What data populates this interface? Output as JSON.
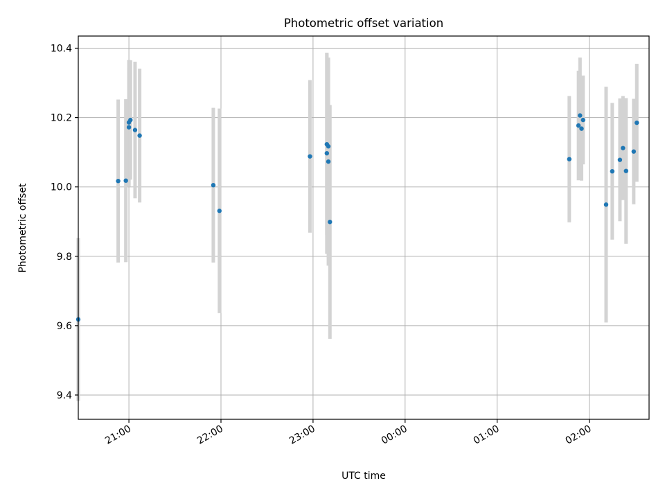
{
  "chart_data": {
    "type": "scatter",
    "title": "Photometric offset variation",
    "xlabel": "UTC time",
    "ylabel": "Photometric offset",
    "x_unit": "UTC time (HH:MM), spanning midnight",
    "xlim": [
      "20:27",
      "02:39"
    ],
    "ylim": [
      9.33,
      10.435
    ],
    "xticks": [
      "21:00",
      "22:00",
      "23:00",
      "00:00",
      "01:00",
      "02:00"
    ],
    "yticks": [
      "9.4",
      "9.6",
      "9.8",
      "10.0",
      "10.2",
      "10.4"
    ],
    "grid": true,
    "x_tick_rotation_deg": 30,
    "colors": {
      "point": "#1f77b4",
      "errorbar": "#d3d3d3",
      "grid": "#b0b0b0",
      "axes": "#000000"
    },
    "series": [
      {
        "points": [
          {
            "t": "20:27",
            "y": 9.618,
            "err": 0.235
          },
          {
            "t": "20:53",
            "y": 10.017,
            "err": 0.235
          },
          {
            "t": "20:58",
            "y": 10.018,
            "err": 0.235
          },
          {
            "t": "21:00",
            "y": 10.186,
            "err": 0.18
          },
          {
            "t": "21:00",
            "y": 10.172,
            "err": 0.172
          },
          {
            "t": "21:01",
            "y": 10.193,
            "err": 0.172
          },
          {
            "t": "21:04",
            "y": 10.164,
            "err": 0.197
          },
          {
            "t": "21:07",
            "y": 10.148,
            "err": 0.193
          },
          {
            "t": "21:55",
            "y": 10.005,
            "err": 0.223
          },
          {
            "t": "21:59",
            "y": 9.931,
            "err": 0.295
          },
          {
            "t": "22:58",
            "y": 10.088,
            "err": 0.22
          },
          {
            "t": "23:09",
            "y": 10.123,
            "err": 0.262
          },
          {
            "t": "23:09",
            "y": 10.097,
            "err": 0.29
          },
          {
            "t": "23:10",
            "y": 10.073,
            "err": 0.3
          },
          {
            "t": "23:10",
            "y": 10.117,
            "err": 0.255
          },
          {
            "t": "23:11",
            "y": 9.899,
            "err": 0.337
          },
          {
            "t": "01:47",
            "y": 10.08,
            "err": 0.182
          },
          {
            "t": "01:53",
            "y": 10.177,
            "err": 0.158
          },
          {
            "t": "01:54",
            "y": 10.206,
            "err": 0.167
          },
          {
            "t": "01:55",
            "y": 10.168,
            "err": 0.15
          },
          {
            "t": "01:56",
            "y": 10.193,
            "err": 0.128
          },
          {
            "t": "02:11",
            "y": 9.949,
            "err": 0.34
          },
          {
            "t": "02:15",
            "y": 10.045,
            "err": 0.197
          },
          {
            "t": "02:20",
            "y": 10.078,
            "err": 0.177
          },
          {
            "t": "02:22",
            "y": 10.112,
            "err": 0.15
          },
          {
            "t": "02:24",
            "y": 10.046,
            "err": 0.21
          },
          {
            "t": "02:29",
            "y": 10.102,
            "err": 0.152
          },
          {
            "t": "02:31",
            "y": 10.185,
            "err": 0.17
          }
        ]
      }
    ]
  }
}
